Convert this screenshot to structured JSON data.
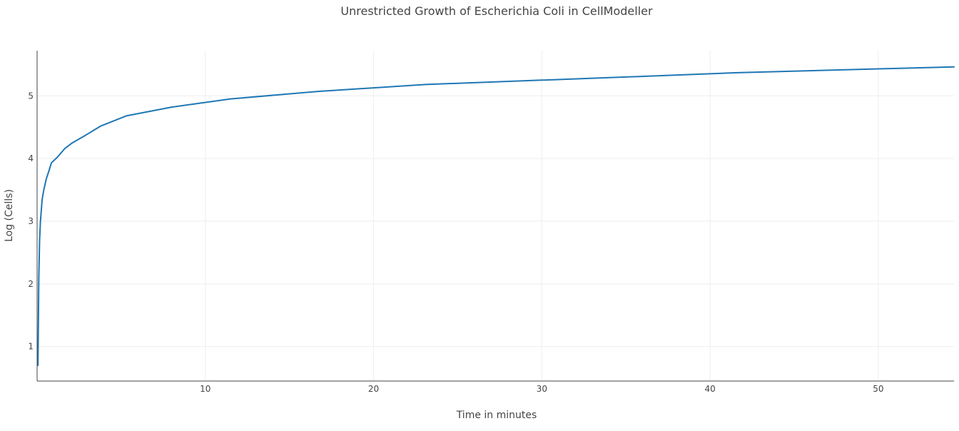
{
  "chart_data": {
    "type": "line",
    "title": "Unrestricted Growth of Escherichia Coli in CellModeller",
    "xlabel": "Time in minutes",
    "ylabel": "Log (Cells)",
    "xlim": [
      0,
      54.5
    ],
    "ylim": [
      0.45,
      5.72
    ],
    "xticks": [
      10,
      20,
      30,
      40,
      50
    ],
    "yticks": [
      1,
      2,
      3,
      4,
      5
    ],
    "grid": true,
    "series_color": "#1f77b4",
    "series": [
      {
        "values_x": [
          0.05,
          0.1,
          0.15,
          0.2,
          0.3,
          0.4,
          0.55,
          0.7,
          0.85,
          1.2,
          1.65,
          2.1,
          2.75,
          3.8,
          5.3,
          8.0,
          11.5,
          16.7,
          23.1,
          30.0,
          35.0,
          41.8,
          50.0,
          54.5
        ],
        "values_y": [
          0.7,
          2.1,
          2.7,
          3.0,
          3.35,
          3.5,
          3.68,
          3.8,
          3.93,
          4.02,
          4.16,
          4.25,
          4.35,
          4.52,
          4.68,
          4.82,
          4.95,
          5.07,
          5.18,
          5.25,
          5.3,
          5.37,
          5.43,
          5.46
        ]
      }
    ]
  }
}
